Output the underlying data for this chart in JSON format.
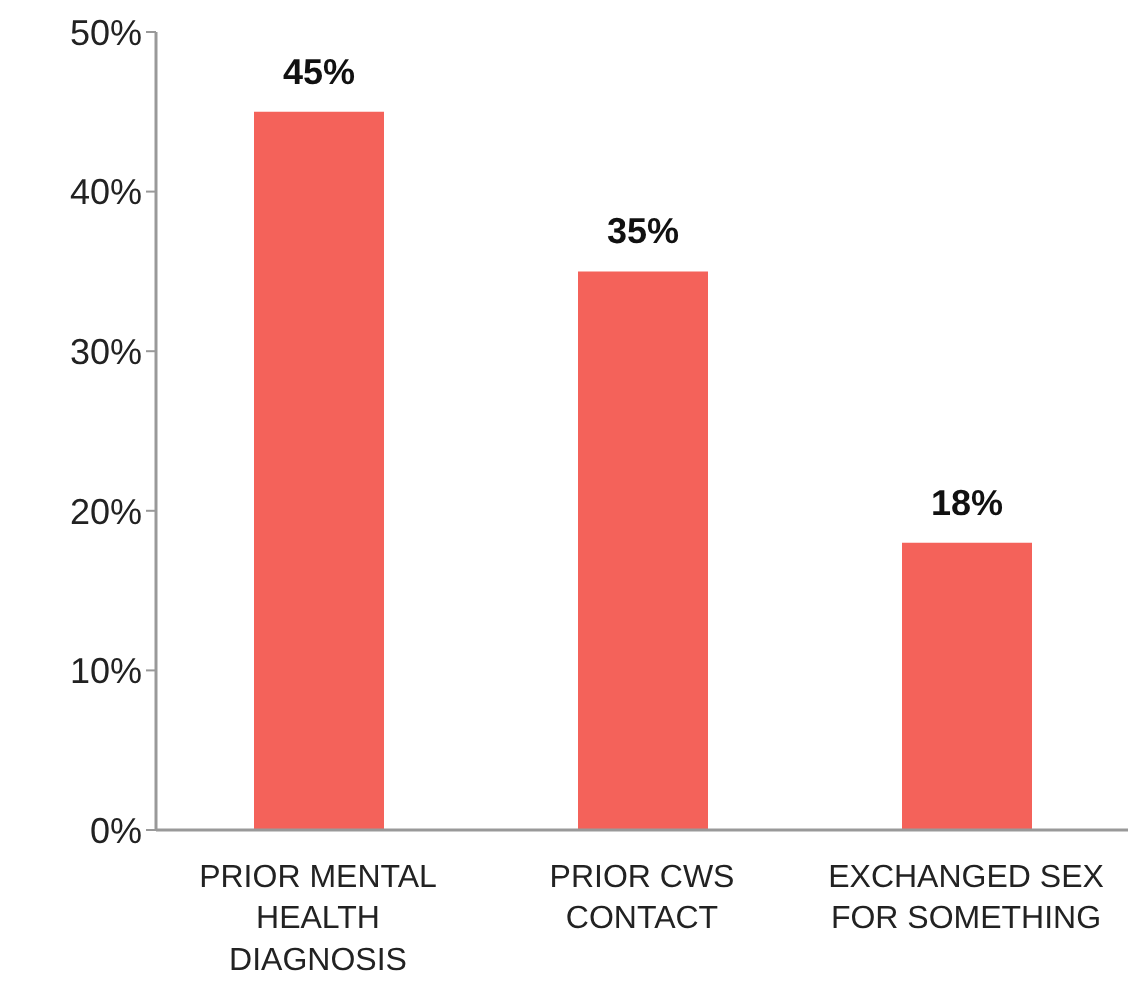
{
  "chart_data": {
    "type": "bar",
    "categories": [
      "PRIOR MENTAL HEALTH DIAGNOSIS",
      "PRIOR CWS CONTACT",
      "EXCHANGED SEX FOR SOMETHING"
    ],
    "values": [
      45,
      35,
      18
    ],
    "value_labels": [
      "45%",
      "35%",
      "18%"
    ],
    "color": "#f4625a",
    "ylim": [
      0,
      50
    ],
    "yticks": [
      {
        "value": 0,
        "label": "0%"
      },
      {
        "value": 10,
        "label": "10%"
      },
      {
        "value": 20,
        "label": "20%"
      },
      {
        "value": 30,
        "label": "30%"
      },
      {
        "value": 40,
        "label": "40%"
      },
      {
        "value": 50,
        "label": "50%"
      }
    ]
  }
}
